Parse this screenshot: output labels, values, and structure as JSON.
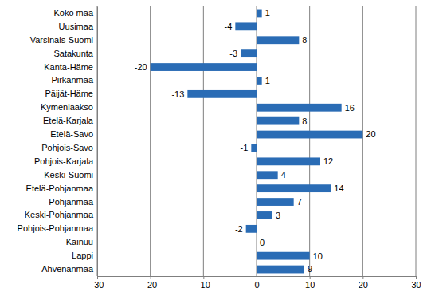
{
  "chart_data": {
    "type": "bar",
    "orientation": "horizontal",
    "categories": [
      "Koko maa",
      "Uusimaa",
      "Varsinais-Suomi",
      "Satakunta",
      "Kanta-Häme",
      "Pirkanmaa",
      "Päijät-Häme",
      "Kymenlaakso",
      "Etelä-Karjala",
      "Etelä-Savo",
      "Pohjois-Savo",
      "Pohjois-Karjala",
      "Keski-Suomi",
      "Etelä-Pohjanmaa",
      "Pohjanmaa",
      "Keski-Pohjanmaa",
      "Pohjois-Pohjanmaa",
      "Kainuu",
      "Lappi",
      "Ahvenanmaa"
    ],
    "values": [
      1,
      -4,
      8,
      -3,
      -20,
      1,
      -13,
      16,
      8,
      20,
      -1,
      12,
      4,
      14,
      7,
      3,
      -2,
      0,
      10,
      9
    ],
    "color": "#2a6cb5",
    "xlim": [
      -30,
      30
    ],
    "xticks": [
      -30,
      -20,
      -10,
      0,
      10,
      20,
      30
    ],
    "grid": true,
    "data_labels": true
  }
}
